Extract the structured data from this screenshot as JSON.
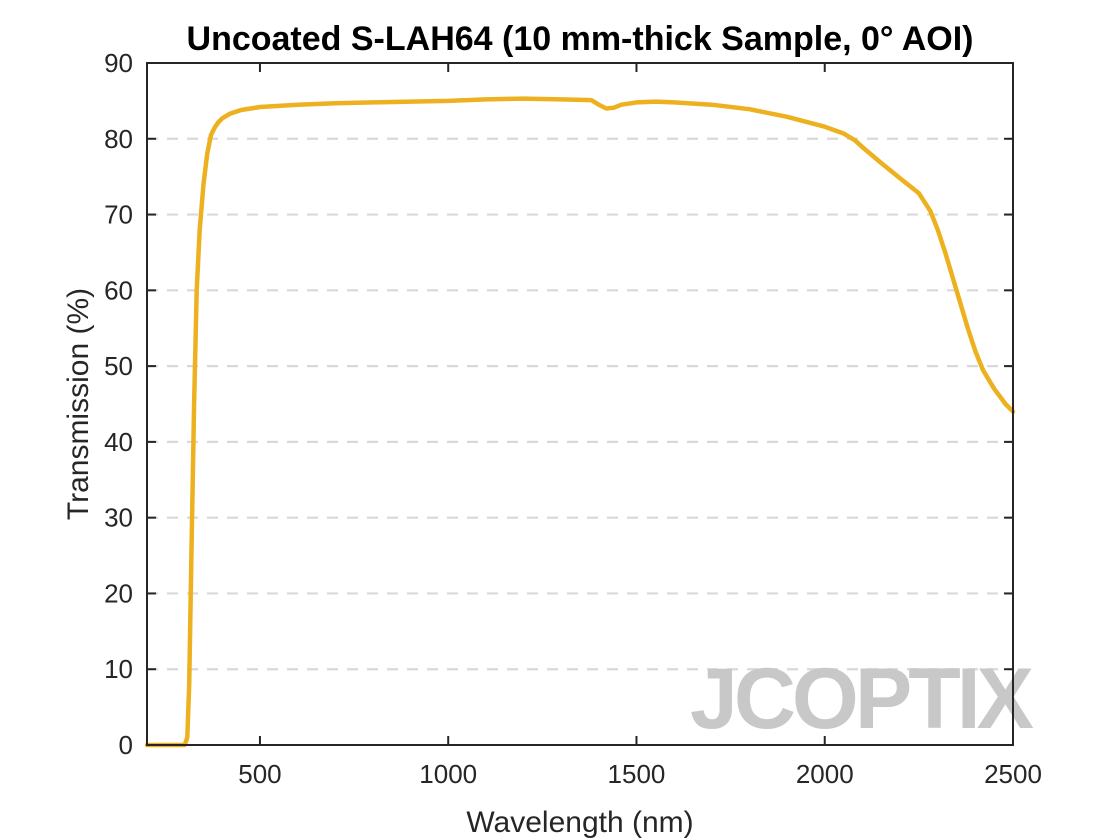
{
  "chart_data": {
    "type": "line",
    "title": "Uncoated S-LAH64 (10 mm-thick Sample, 0° AOI)",
    "xlabel": "Wavelength (nm)",
    "ylabel": "Transmission (%)",
    "xlim": [
      200,
      2500
    ],
    "ylim": [
      0,
      90
    ],
    "xticks": [
      500,
      1000,
      1500,
      2000,
      2500
    ],
    "yticks": [
      0,
      10,
      20,
      30,
      40,
      50,
      60,
      70,
      80,
      90
    ],
    "grid": "horizontal-dashed",
    "series": [
      {
        "color": "#EDB120",
        "x": [
          200,
          250,
          300,
          307,
          312,
          318,
          325,
          332,
          340,
          350,
          360,
          370,
          380,
          390,
          400,
          420,
          450,
          500,
          600,
          700,
          800,
          900,
          1000,
          1050,
          1100,
          1200,
          1300,
          1380,
          1400,
          1420,
          1440,
          1460,
          1500,
          1550,
          1600,
          1700,
          1800,
          1900,
          2000,
          2050,
          2080,
          2100,
          2150,
          2200,
          2250,
          2280,
          2300,
          2320,
          2350,
          2380,
          2400,
          2420,
          2450,
          2480,
          2500
        ],
        "y": [
          0,
          0,
          0,
          1,
          8,
          25,
          45,
          60,
          68,
          74,
          78,
          80.5,
          81.5,
          82.2,
          82.7,
          83.3,
          83.8,
          84.2,
          84.5,
          84.7,
          84.8,
          84.9,
          85.0,
          85.1,
          85.2,
          85.3,
          85.2,
          85.1,
          84.5,
          84.0,
          84.1,
          84.5,
          84.8,
          84.9,
          84.8,
          84.5,
          83.9,
          82.9,
          81.6,
          80.7,
          79.8,
          78.9,
          76.8,
          74.8,
          72.8,
          70.5,
          68.0,
          65.0,
          60.0,
          55.0,
          52.0,
          49.5,
          47.0,
          45.0,
          44.0
        ]
      }
    ],
    "watermark": "JCOPTIX"
  }
}
